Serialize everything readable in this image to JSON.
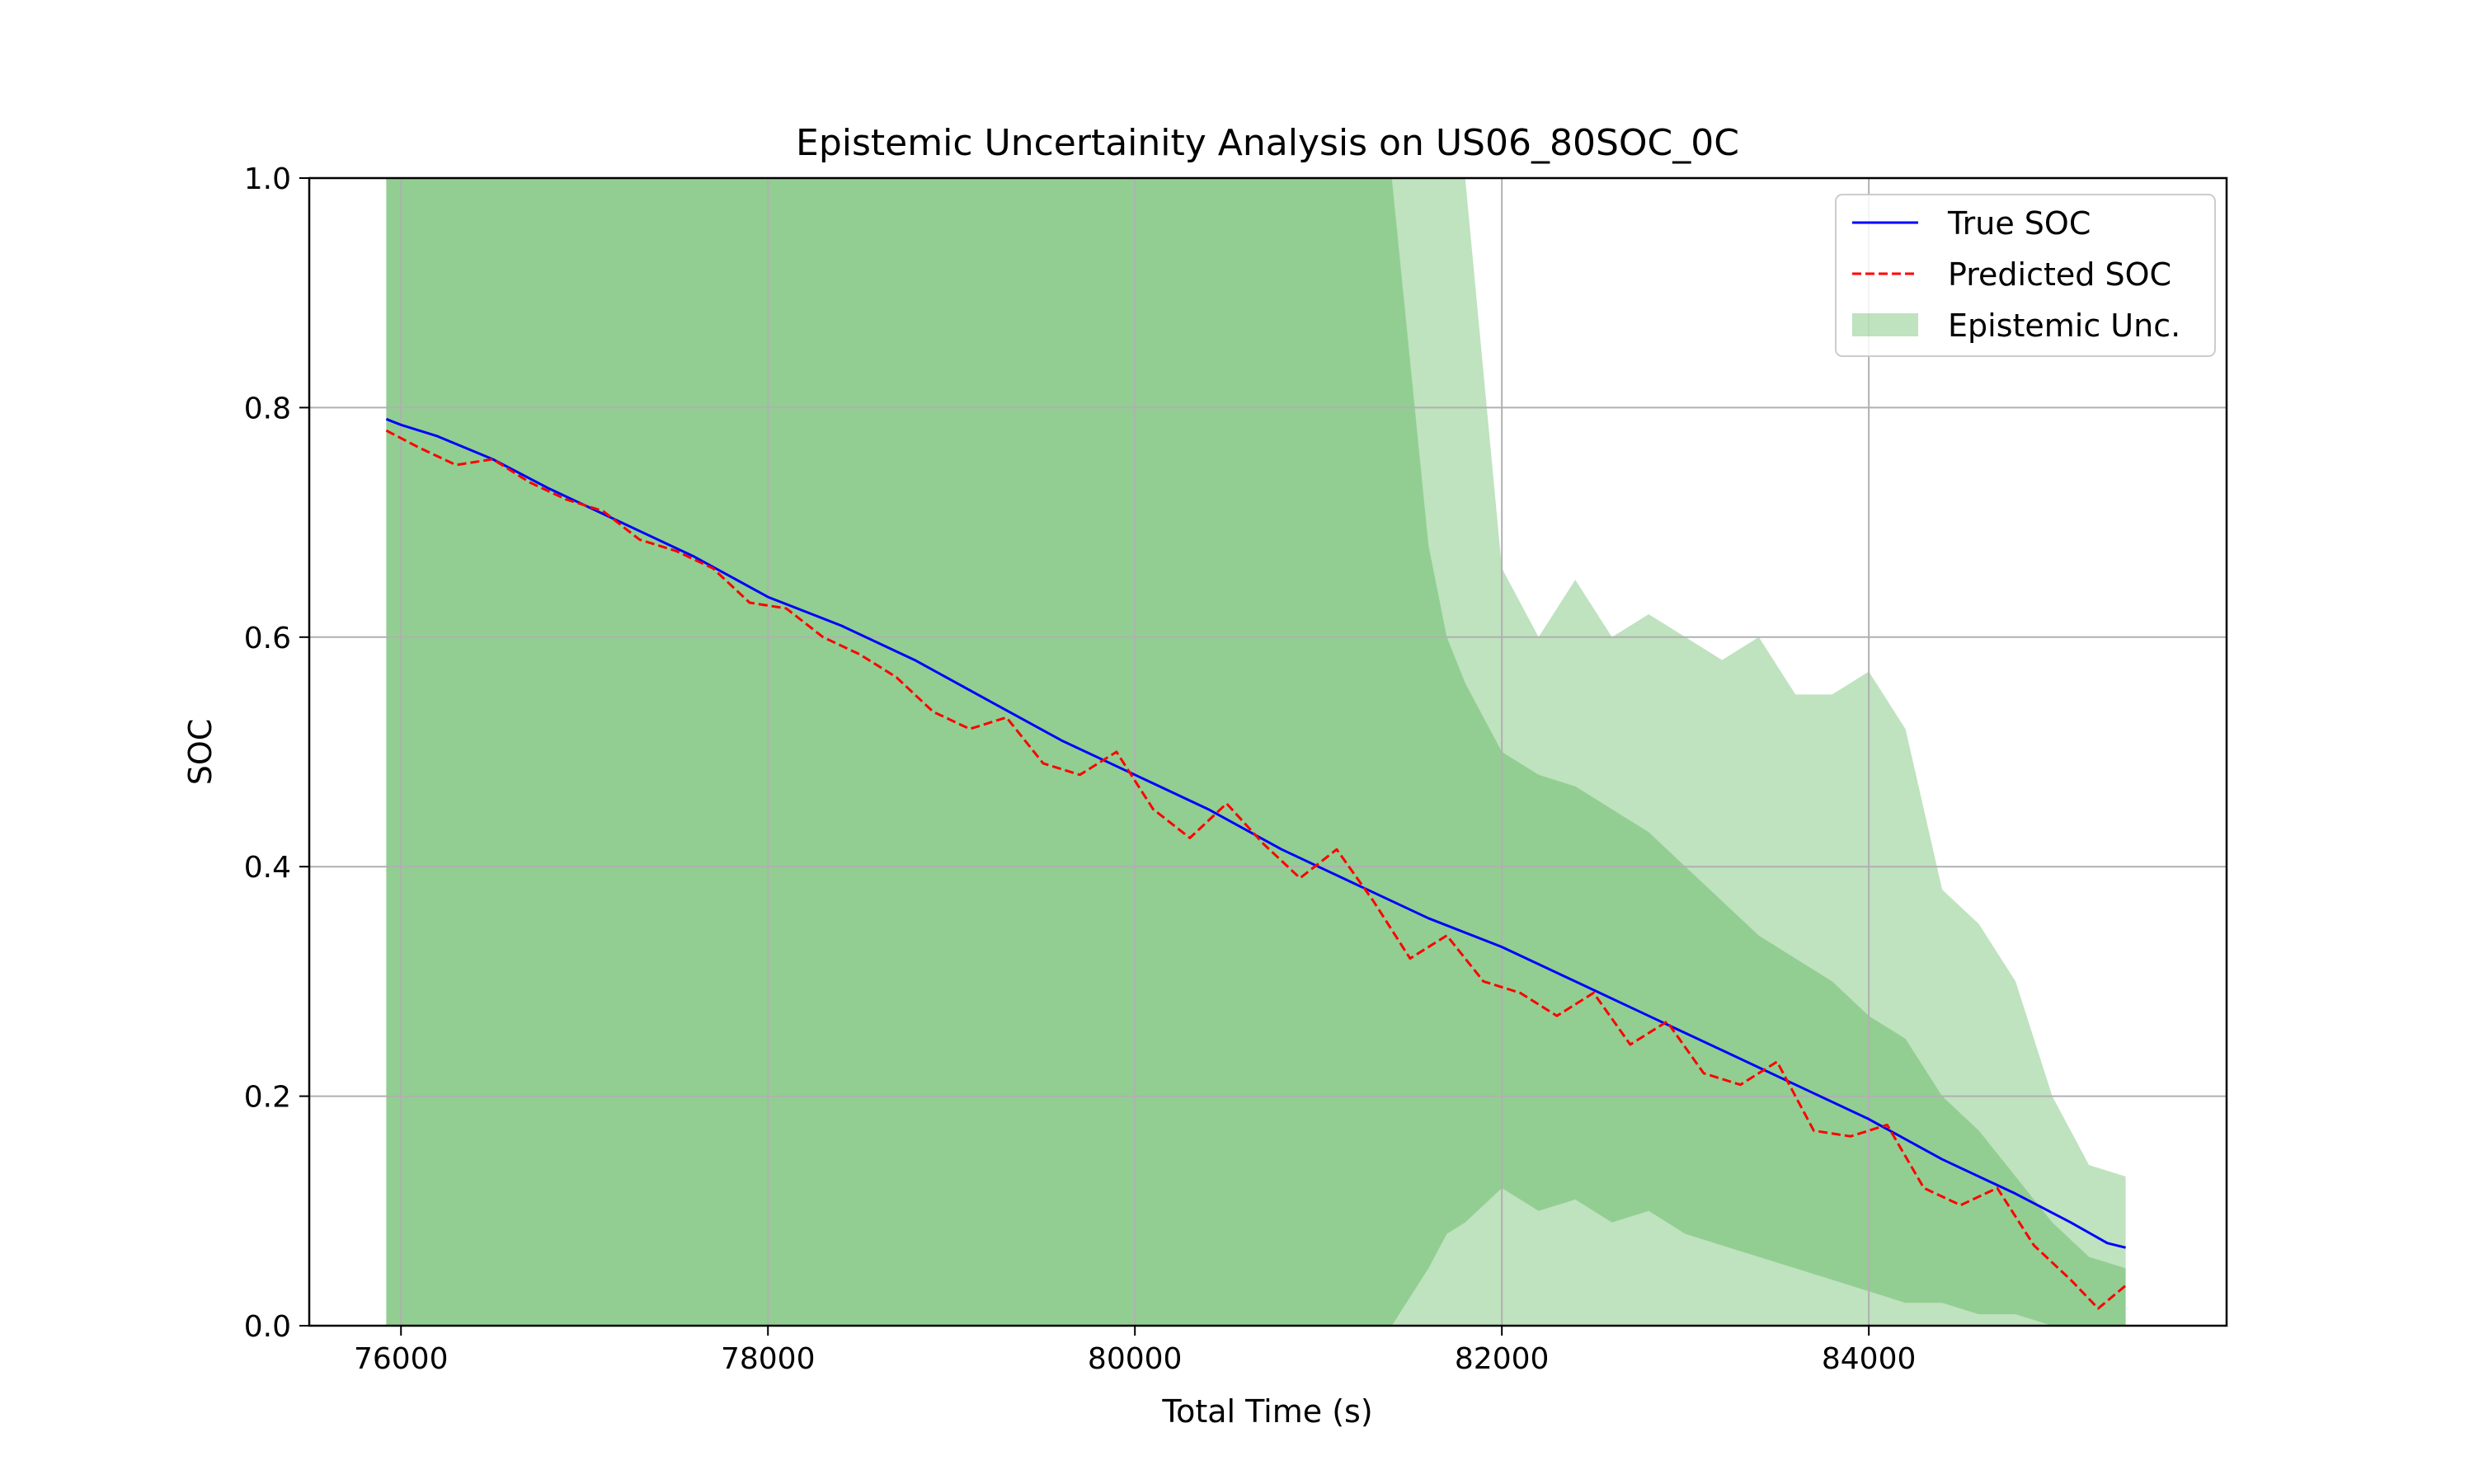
{
  "chart_data": {
    "type": "line",
    "title": "Epistemic Uncertainity Analysis on US06_80SOC_0C",
    "xlabel": "Total Time (s)",
    "ylabel": "SOC",
    "xlim": [
      75500,
      85950
    ],
    "ylim": [
      0.0,
      1.0
    ],
    "xticks": [
      76000,
      78000,
      80000,
      82000,
      84000
    ],
    "xtick_labels": [
      "76000",
      "78000",
      "80000",
      "82000",
      "84000"
    ],
    "yticks": [
      0.0,
      0.2,
      0.4,
      0.6,
      0.8,
      1.0
    ],
    "ytick_labels": [
      "0.0",
      "0.2",
      "0.4",
      "0.6",
      "0.8",
      "1.0"
    ],
    "grid": true,
    "legend_position": "upper right",
    "series": [
      {
        "name": "True SOC",
        "style": "solid",
        "color": "#0000ff",
        "x": [
          75920,
          76000,
          76200,
          76500,
          76800,
          77200,
          77600,
          78000,
          78400,
          78800,
          79200,
          79600,
          80000,
          80400,
          80800,
          81200,
          81600,
          82000,
          82400,
          82800,
          83200,
          83600,
          84000,
          84400,
          84800,
          85100,
          85300,
          85400
        ],
        "y": [
          0.79,
          0.785,
          0.775,
          0.755,
          0.73,
          0.7,
          0.67,
          0.635,
          0.61,
          0.58,
          0.545,
          0.51,
          0.48,
          0.45,
          0.415,
          0.385,
          0.355,
          0.33,
          0.3,
          0.27,
          0.24,
          0.21,
          0.18,
          0.145,
          0.115,
          0.09,
          0.072,
          0.068
        ]
      },
      {
        "name": "Predicted SOC",
        "style": "dashed",
        "color": "#ff0000",
        "x": [
          75920,
          76100,
          76300,
          76500,
          76700,
          76900,
          77100,
          77300,
          77500,
          77700,
          77900,
          78100,
          78300,
          78500,
          78700,
          78900,
          79100,
          79300,
          79500,
          79700,
          79900,
          80100,
          80300,
          80500,
          80700,
          80900,
          81100,
          81300,
          81500,
          81700,
          81900,
          82100,
          82300,
          82500,
          82700,
          82900,
          83100,
          83300,
          83500,
          83700,
          83900,
          84100,
          84300,
          84500,
          84700,
          84900,
          85100,
          85250,
          85400
        ],
        "y": [
          0.78,
          0.765,
          0.75,
          0.755,
          0.735,
          0.72,
          0.71,
          0.685,
          0.675,
          0.66,
          0.63,
          0.625,
          0.6,
          0.585,
          0.565,
          0.535,
          0.52,
          0.53,
          0.49,
          0.48,
          0.5,
          0.45,
          0.425,
          0.455,
          0.42,
          0.39,
          0.415,
          0.37,
          0.32,
          0.34,
          0.3,
          0.29,
          0.27,
          0.29,
          0.245,
          0.265,
          0.22,
          0.21,
          0.23,
          0.17,
          0.165,
          0.175,
          0.12,
          0.105,
          0.12,
          0.07,
          0.04,
          0.015,
          0.035
        ]
      }
    ],
    "band": {
      "name": "Epistemic Unc.",
      "color": "#2ca02c",
      "x": [
        75920,
        76500,
        77000,
        77500,
        78000,
        78500,
        79000,
        79500,
        80000,
        80500,
        81000,
        81400,
        81600,
        81700,
        81800,
        82000,
        82200,
        82400,
        82600,
        82800,
        83000,
        83200,
        83400,
        83600,
        83800,
        84000,
        84200,
        84400,
        84600,
        84800,
        85000,
        85200,
        85400
      ],
      "lower_outer": [
        0.0,
        0.0,
        0.0,
        0.0,
        0.0,
        0.0,
        0.0,
        0.0,
        0.0,
        0.0,
        0.0,
        0.0,
        0.0,
        0.0,
        0.0,
        0.0,
        0.0,
        0.0,
        0.0,
        0.0,
        0.0,
        0.0,
        0.0,
        0.0,
        0.0,
        0.0,
        0.0,
        0.0,
        0.0,
        0.0,
        0.0,
        0.0,
        0.0
      ],
      "upper_outer": [
        1.0,
        1.0,
        1.0,
        1.0,
        1.0,
        1.0,
        1.0,
        1.0,
        1.0,
        1.0,
        1.0,
        1.0,
        1.0,
        1.0,
        1.0,
        0.66,
        0.6,
        0.65,
        0.6,
        0.62,
        0.6,
        0.58,
        0.6,
        0.55,
        0.55,
        0.57,
        0.52,
        0.38,
        0.35,
        0.3,
        0.2,
        0.14,
        0.13
      ],
      "lower_inner": [
        0.0,
        0.0,
        0.0,
        0.0,
        0.0,
        0.0,
        0.0,
        0.0,
        0.0,
        0.0,
        0.0,
        0.0,
        0.05,
        0.08,
        0.09,
        0.12,
        0.1,
        0.11,
        0.09,
        0.1,
        0.08,
        0.07,
        0.06,
        0.05,
        0.04,
        0.03,
        0.02,
        0.02,
        0.01,
        0.01,
        0.0,
        0.0,
        0.0
      ],
      "upper_inner": [
        1.0,
        1.0,
        1.0,
        1.0,
        1.0,
        1.0,
        1.0,
        1.0,
        1.0,
        1.0,
        1.0,
        1.0,
        0.68,
        0.6,
        0.56,
        0.5,
        0.48,
        0.47,
        0.45,
        0.43,
        0.4,
        0.37,
        0.34,
        0.32,
        0.3,
        0.27,
        0.25,
        0.2,
        0.17,
        0.13,
        0.09,
        0.06,
        0.05
      ]
    }
  }
}
